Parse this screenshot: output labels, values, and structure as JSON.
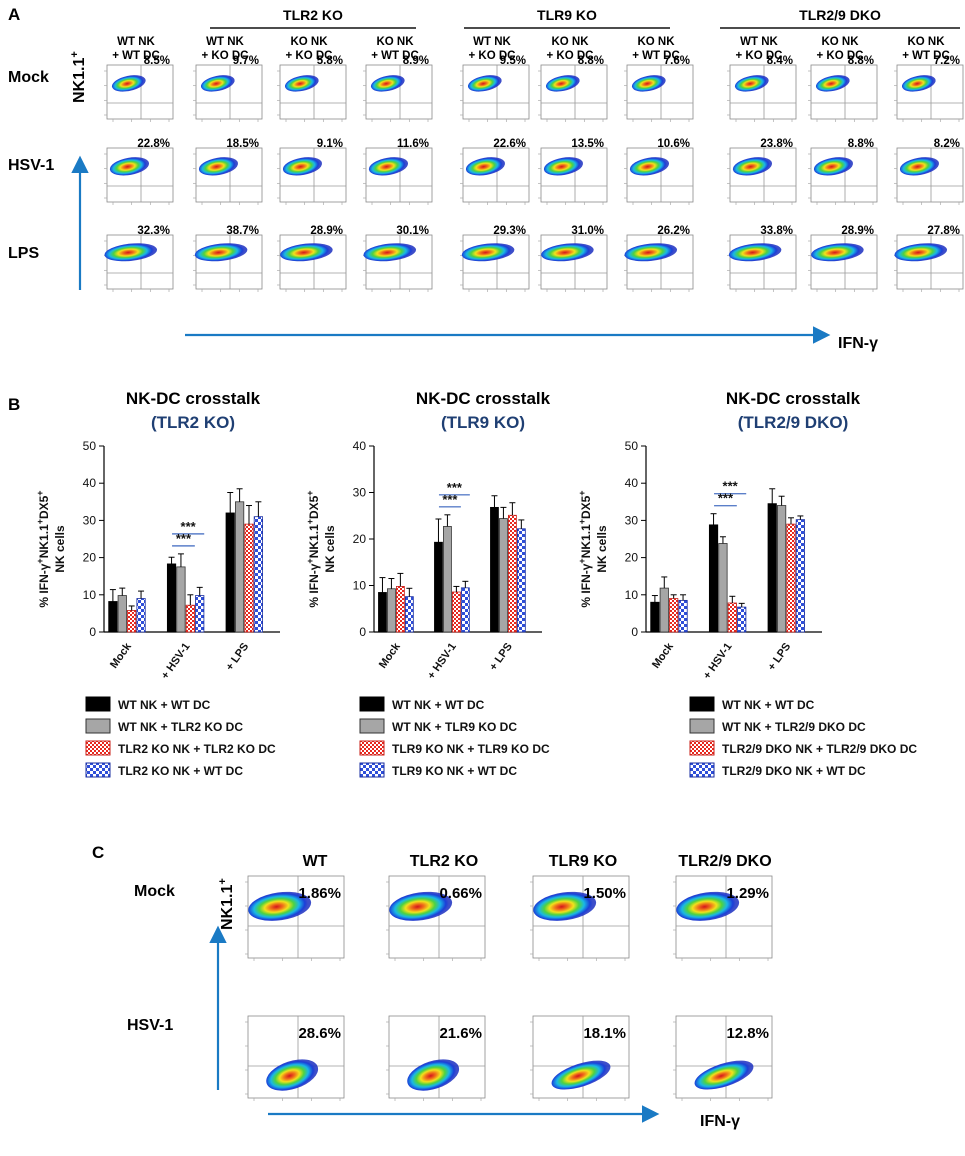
{
  "colors": {
    "accent": "#1a7ac4",
    "wt_bar": "#000000",
    "ko_dc_bar": "#a6a6a6",
    "ko_ko_bar": "#f23b2e",
    "ko_wt_bar": "#2f4fd9",
    "subtitle": "#1f3f73",
    "sig_line": "#5b7fc9"
  },
  "panel_a": {
    "label": "A",
    "groups": [
      "TLR2 KO",
      "TLR9 KO",
      "TLR2/9 DKO"
    ],
    "columns": [
      [
        "WT NK",
        "+ WT DC"
      ],
      [
        "WT NK",
        "+ KO DC"
      ],
      [
        "KO NK",
        "+ KO DC"
      ],
      [
        "KO NK",
        "+ WT DC"
      ],
      [
        "WT NK",
        "+ KO DC"
      ],
      [
        "KO NK",
        "+ KO DC"
      ],
      [
        "KO NK",
        "+ WT DC"
      ],
      [
        "WT NK",
        "+ KO DC"
      ],
      [
        "KO NK",
        "+ KO DC"
      ],
      [
        "KO NK",
        "+ WT DC"
      ]
    ],
    "rows": [
      "Mock",
      "HSV-1",
      "LPS"
    ],
    "percents": [
      [
        "8.5%",
        "9.7%",
        "5.8%",
        "8.9%",
        "9.5%",
        "8.8%",
        "7.6%",
        "8.4%",
        "8.8%",
        "7.2%"
      ],
      [
        "22.8%",
        "18.5%",
        "9.1%",
        "11.6%",
        "22.6%",
        "13.5%",
        "10.6%",
        "23.8%",
        "8.8%",
        "8.2%"
      ],
      [
        "32.3%",
        "38.7%",
        "28.9%",
        "30.1%",
        "29.3%",
        "31.0%",
        "26.2%",
        "33.8%",
        "28.9%",
        "27.8%"
      ]
    ],
    "y_axis_label": "NK1.1",
    "y_axis_sup": "+",
    "x_axis_label": "IFN-γ"
  },
  "panel_b": {
    "label": "B",
    "y_axis": {
      "line1": "% IFN-γ",
      "line1_sup": "+",
      "line1b": "NK1.1",
      "line1b_sup": "+",
      "line1c": "DX5",
      "line1c_sup": "+",
      "line2": "NK cells"
    },
    "significance": "***"
  },
  "chart_data": [
    {
      "type": "bar",
      "title": "NK-DC crosstalk",
      "subtitle": "(TLR2 KO)",
      "ylabel": "% IFN-γ+NK1.1+DX5+ NK cells",
      "ylim": [
        0,
        50
      ],
      "yticks": [
        0,
        10,
        20,
        30,
        40,
        50
      ],
      "categories": [
        "Mock",
        "+ HSV-1",
        "+ LPS"
      ],
      "series": [
        {
          "name": "WT NK + WT DC",
          "values": [
            8.2,
            18.3,
            32.0
          ],
          "errors": [
            3.2,
            1.8,
            5.5
          ]
        },
        {
          "name": "WT NK + TLR2 KO DC",
          "values": [
            9.8,
            17.5,
            35.0
          ],
          "errors": [
            2.0,
            3.5,
            3.5
          ]
        },
        {
          "name": "TLR2 KO NK + TLR2 KO DC",
          "values": [
            5.8,
            7.2,
            29.0
          ],
          "errors": [
            1.2,
            2.8,
            5.0
          ]
        },
        {
          "name": "TLR2 KO NK + WT DC",
          "values": [
            9.0,
            9.8,
            31.0
          ],
          "errors": [
            2.0,
            2.2,
            4.0
          ]
        }
      ]
    },
    {
      "type": "bar",
      "title": "NK-DC crosstalk",
      "subtitle": "(TLR9 KO)",
      "ylabel": "% IFN-γ+NK1.1+DX5+ NK cells",
      "ylim": [
        0,
        40
      ],
      "yticks": [
        0,
        10,
        20,
        30,
        40
      ],
      "categories": [
        "Mock",
        "+ HSV-1",
        "+ LPS"
      ],
      "series": [
        {
          "name": "WT NK + WT DC",
          "values": [
            8.5,
            19.3,
            26.8
          ],
          "errors": [
            3.2,
            5.0,
            2.5
          ]
        },
        {
          "name": "WT NK + TLR9 KO DC",
          "values": [
            9.3,
            22.7,
            24.4
          ],
          "errors": [
            2.2,
            2.5,
            2.4
          ]
        },
        {
          "name": "TLR9 KO NK + TLR9 KO DC",
          "values": [
            9.8,
            8.6,
            25.1
          ],
          "errors": [
            2.8,
            1.2,
            2.7
          ]
        },
        {
          "name": "TLR9 KO NK + WT DC",
          "values": [
            7.6,
            9.5,
            22.2
          ],
          "errors": [
            1.8,
            1.4,
            1.9
          ]
        }
      ]
    },
    {
      "type": "bar",
      "title": "NK-DC crosstalk",
      "subtitle": "(TLR2/9 DKO)",
      "ylabel": "% IFN-γ+NK1.1+DX5+ NK cells",
      "ylim": [
        0,
        50
      ],
      "yticks": [
        0,
        10,
        20,
        30,
        40,
        50
      ],
      "categories": [
        "Mock",
        "+ HSV-1",
        "+ LPS"
      ],
      "series": [
        {
          "name": "WT NK + WT DC",
          "values": [
            8.0,
            28.8,
            34.5
          ],
          "errors": [
            1.8,
            3.0,
            4.0
          ]
        },
        {
          "name": "WT NK + TLR2/9 DKO DC",
          "values": [
            11.8,
            23.8,
            34.0
          ],
          "errors": [
            3.0,
            1.8,
            2.5
          ]
        },
        {
          "name": "TLR2/9 DKO NK + TLR2/9 DKO DC",
          "values": [
            9.0,
            7.8,
            29.0
          ],
          "errors": [
            1.0,
            1.8,
            1.7
          ]
        },
        {
          "name": "TLR2/9 DKO NK + WT DC",
          "values": [
            8.5,
            6.7,
            30.2
          ],
          "errors": [
            1.5,
            1.0,
            1.0
          ]
        }
      ]
    }
  ],
  "panel_c": {
    "label": "C",
    "columns": [
      "WT",
      "TLR2 KO",
      "TLR9 KO",
      "TLR2/9 DKO"
    ],
    "rows": [
      "Mock",
      "HSV-1"
    ],
    "percents": [
      [
        "1.86%",
        "0.66%",
        "1.50%",
        "1.29%"
      ],
      [
        "28.6%",
        "21.6%",
        "18.1%",
        "12.8%"
      ]
    ],
    "y_axis_label": "NK1.1",
    "y_axis_sup": "+",
    "x_axis_label": "IFN-γ"
  }
}
